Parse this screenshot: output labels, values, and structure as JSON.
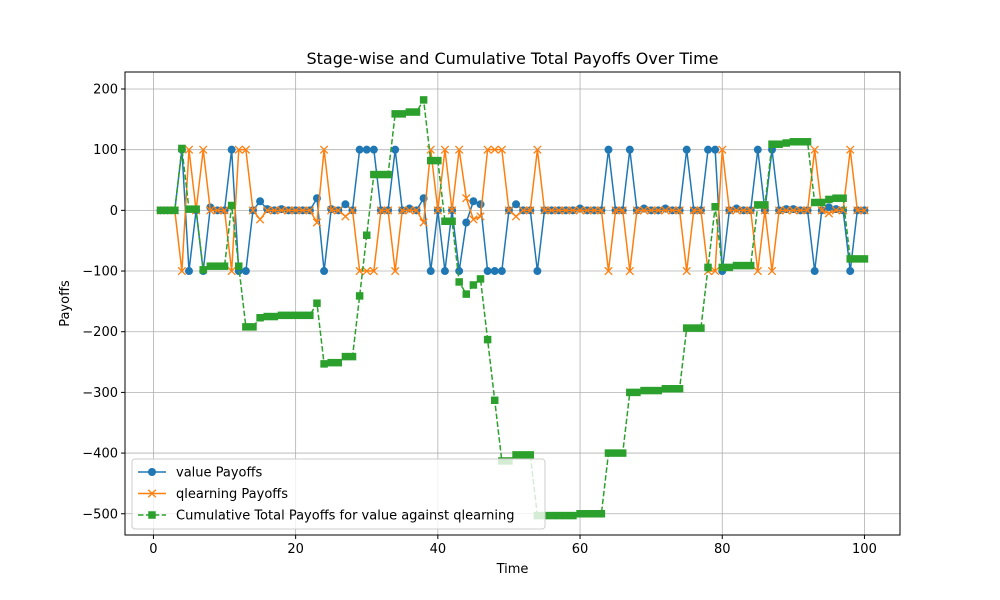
{
  "chart_data": {
    "type": "line",
    "title": "Stage-wise and Cumulative Total Payoffs Over Time",
    "xlabel": "Time",
    "ylabel": "Payoffs",
    "xlim": [
      -4,
      105
    ],
    "ylim": [
      -535,
      228
    ],
    "xticks": [
      0,
      20,
      40,
      60,
      80,
      100
    ],
    "yticks": [
      -500,
      -400,
      -300,
      -200,
      -100,
      0,
      100,
      200
    ],
    "grid": true,
    "legend_position": "lower-left",
    "x": [
      1,
      2,
      3,
      4,
      5,
      6,
      7,
      8,
      9,
      10,
      11,
      12,
      13,
      14,
      15,
      16,
      17,
      18,
      19,
      20,
      21,
      22,
      23,
      24,
      25,
      26,
      27,
      28,
      29,
      30,
      31,
      32,
      33,
      34,
      35,
      36,
      37,
      38,
      39,
      40,
      41,
      42,
      43,
      44,
      45,
      46,
      47,
      48,
      49,
      50,
      51,
      52,
      53,
      54,
      55,
      56,
      57,
      58,
      59,
      60,
      61,
      62,
      63,
      64,
      65,
      66,
      67,
      68,
      69,
      70,
      71,
      72,
      73,
      74,
      75,
      76,
      77,
      78,
      79,
      80,
      81,
      82,
      83,
      84,
      85,
      86,
      87,
      88,
      89,
      90,
      91,
      92,
      93,
      94,
      95,
      96,
      97,
      98,
      99,
      100
    ],
    "series": [
      {
        "name": "value Payoffs",
        "color": "#1f77b4",
        "marker": "circle",
        "linestyle": "solid",
        "values": [
          0,
          0,
          0,
          100,
          -100,
          0,
          -100,
          5,
          0,
          0,
          100,
          -100,
          -100,
          0,
          15,
          2,
          0,
          2,
          0,
          0,
          0,
          0,
          20,
          -100,
          2,
          0,
          10,
          0,
          100,
          100,
          100,
          0,
          0,
          100,
          0,
          3,
          0,
          20,
          -100,
          0,
          -100,
          0,
          -100,
          -20,
          15,
          10,
          -100,
          -100,
          -100,
          0,
          10,
          0,
          0,
          -100,
          0,
          0,
          0,
          0,
          0,
          3,
          0,
          0,
          0,
          100,
          0,
          0,
          100,
          0,
          3,
          0,
          0,
          3,
          0,
          0,
          100,
          0,
          0,
          100,
          100,
          -100,
          0,
          3,
          0,
          0,
          100,
          0,
          100,
          0,
          2,
          2,
          0,
          0,
          -100,
          0,
          5,
          2,
          0,
          -100,
          0,
          0
        ]
      },
      {
        "name": "qlearning Payoffs",
        "color": "#ff7f0e",
        "marker": "x",
        "linestyle": "solid",
        "values": [
          0,
          0,
          0,
          -100,
          100,
          0,
          100,
          0,
          0,
          0,
          -100,
          100,
          100,
          0,
          -15,
          0,
          0,
          0,
          0,
          0,
          0,
          0,
          -20,
          100,
          0,
          0,
          -10,
          0,
          -100,
          -100,
          -100,
          0,
          0,
          -100,
          0,
          0,
          0,
          -20,
          100,
          0,
          100,
          0,
          100,
          20,
          -15,
          -10,
          100,
          100,
          100,
          0,
          -10,
          0,
          0,
          100,
          0,
          0,
          0,
          0,
          0,
          0,
          0,
          0,
          0,
          -100,
          0,
          0,
          -100,
          0,
          0,
          0,
          0,
          0,
          0,
          0,
          -100,
          0,
          0,
          -100,
          -100,
          100,
          0,
          0,
          0,
          0,
          -100,
          0,
          -100,
          0,
          0,
          0,
          0,
          0,
          100,
          0,
          -5,
          0,
          0,
          100,
          0,
          0
        ]
      },
      {
        "name": "Cumulative Total Payoffs for value against qlearning",
        "color": "#2ca02c",
        "marker": "square",
        "linestyle": "dashed",
        "values": [
          0,
          0,
          0,
          102,
          2,
          2,
          -98,
          -92,
          -92,
          -92,
          8,
          -92,
          -192,
          -192,
          -177,
          -175,
          -175,
          -173,
          -173,
          -173,
          -173,
          -173,
          -153,
          -253,
          -251,
          -251,
          -241,
          -241,
          -141,
          -41,
          59,
          59,
          59,
          159,
          159,
          162,
          162,
          182,
          82,
          82,
          -18,
          -18,
          -118,
          -138,
          -123,
          -113,
          -213,
          -313,
          -413,
          -413,
          -403,
          -403,
          -403,
          -503,
          -503,
          -503,
          -503,
          -503,
          -503,
          -500,
          -500,
          -500,
          -500,
          -400,
          -400,
          -400,
          -300,
          -300,
          -297,
          -297,
          -297,
          -294,
          -294,
          -294,
          -194,
          -194,
          -194,
          -94,
          6,
          -94,
          -94,
          -91,
          -91,
          -91,
          9,
          9,
          109,
          109,
          111,
          113,
          113,
          113,
          13,
          13,
          18,
          20,
          20,
          -80,
          -80,
          -80
        ]
      }
    ]
  }
}
